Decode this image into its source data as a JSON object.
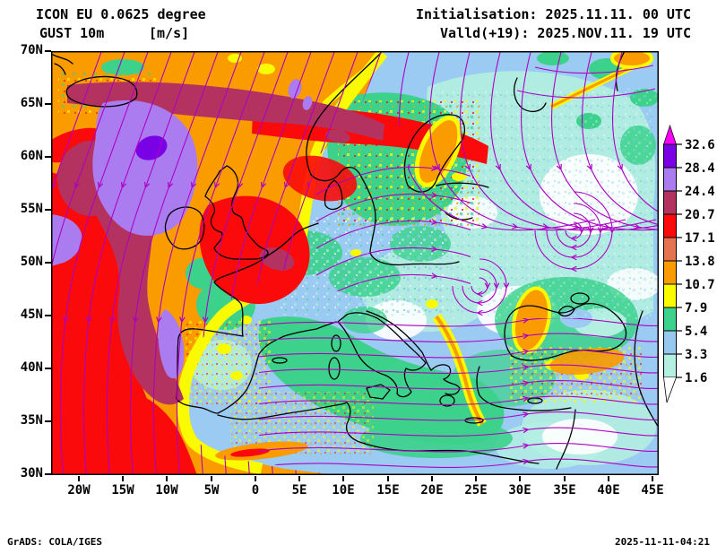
{
  "header": {
    "model": "ICON EU 0.0625 degree",
    "variable": "GUST 10m",
    "units": "[m/s]",
    "initialisation": "Initialisation: 2025.11.11. 00 UTC",
    "valid": "Valld(+19): 2025.NOV.11. 19 UTC"
  },
  "map": {
    "lat_ticks": [
      "70N",
      "65N",
      "60N",
      "55N",
      "50N",
      "45N",
      "40N",
      "35N",
      "30N"
    ],
    "lon_ticks": [
      "20W",
      "15W",
      "10W",
      "5W",
      "0",
      "5E",
      "10E",
      "15E",
      "20E",
      "25E",
      "30E",
      "35E",
      "40E",
      "45E"
    ],
    "coastline_color": "#000000",
    "streamline_color": "#ae00c3",
    "calm_color": "#ffffff"
  },
  "colorbar": {
    "unit": "m/s",
    "labels": [
      "32.6",
      "28.4",
      "24.4",
      "20.7",
      "17.1",
      "13.8",
      "10.7",
      "7.9",
      "5.4",
      "3.3",
      "1.6"
    ],
    "levels": [
      32.6,
      28.4,
      24.4,
      20.7,
      17.1,
      13.8,
      10.7,
      7.9,
      5.4,
      3.3,
      1.6
    ],
    "arrow_color": "#fa00fa",
    "colors_top_to_bottom": [
      "#7a00e6",
      "#ab7cf0",
      "#b4325f",
      "#fa0a0a",
      "#e67350",
      "#fa9b00",
      "#fafa00",
      "#3cd28c",
      "#96c8f0",
      "#b4f0e1"
    ],
    "below_min_color": "#ffffff"
  },
  "footer": {
    "left": "GrADS: COLA/IGES",
    "right": "2025-11-11-04:21"
  }
}
